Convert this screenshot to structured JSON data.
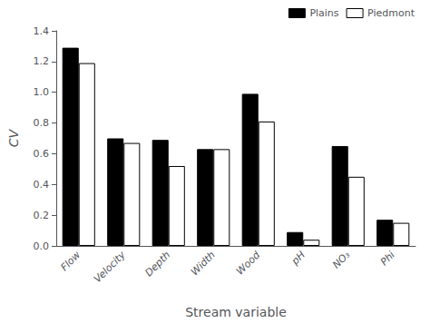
{
  "chart_data": {
    "type": "bar",
    "categories": [
      "Flow",
      "Velocity",
      "Depth",
      "Width",
      "Wood",
      "pH",
      "NO₃",
      "Phi"
    ],
    "series": [
      {
        "name": "Plains",
        "color": "#000000",
        "values": [
          1.29,
          0.7,
          0.69,
          0.63,
          0.99,
          0.09,
          0.65,
          0.17
        ]
      },
      {
        "name": "Piedmont",
        "color": "#ffffff",
        "values": [
          1.19,
          0.67,
          0.52,
          0.63,
          0.81,
          0.04,
          0.45,
          0.15
        ]
      }
    ],
    "xlabel": "Stream variable",
    "ylabel": "CV",
    "ylim": [
      0.0,
      1.4
    ],
    "yticks": [
      {
        "value": 0,
        "label": "0.0"
      },
      0.2,
      0.4,
      0.6,
      0.8,
      {
        "value": 1,
        "label": "1.0"
      },
      1.2,
      1.4
    ],
    "legend": "upper right",
    "grid": false
  }
}
